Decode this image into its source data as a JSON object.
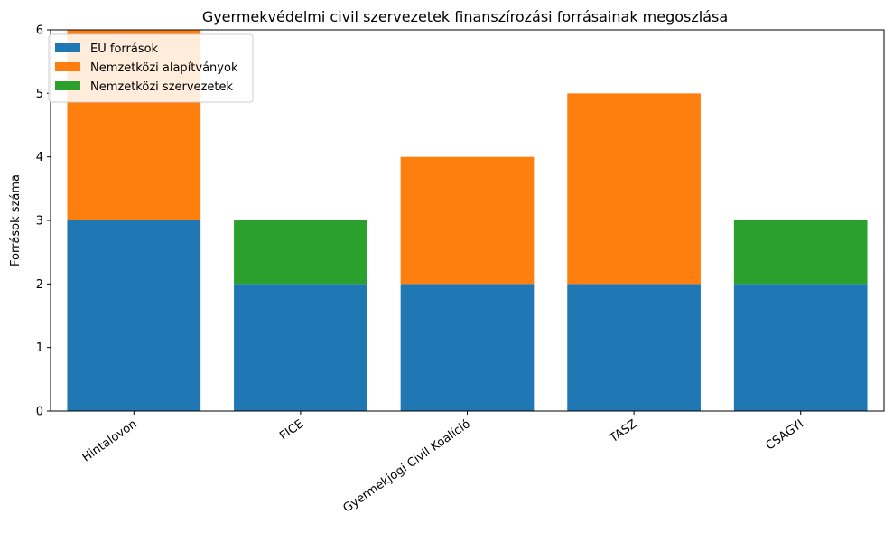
{
  "chart_data": {
    "type": "bar",
    "stacked": true,
    "title": "Gyermekvédelmi civil szervezetek finanszírozási forrásainak megoszlása",
    "xlabel": "",
    "ylabel": "Források száma",
    "categories": [
      "Hintalovon",
      "FICE",
      "Gyermekjogi Civil Koalíció",
      "TASZ",
      "CSAGYI"
    ],
    "series": [
      {
        "name": "EU források",
        "values": [
          3,
          2,
          2,
          2,
          2
        ],
        "color": "#1f77b4"
      },
      {
        "name": "Nemzetközi alapítványok",
        "values": [
          3,
          0,
          2,
          3,
          0
        ],
        "color": "#ff7f0e"
      },
      {
        "name": "Nemzetközi szervezetek",
        "values": [
          0,
          1,
          0,
          0,
          1
        ],
        "color": "#2ca02c"
      }
    ],
    "ylim": [
      0,
      6
    ],
    "yticks": [
      0,
      1,
      2,
      3,
      4,
      5,
      6
    ],
    "grid": false,
    "legend_position": "top-left"
  }
}
